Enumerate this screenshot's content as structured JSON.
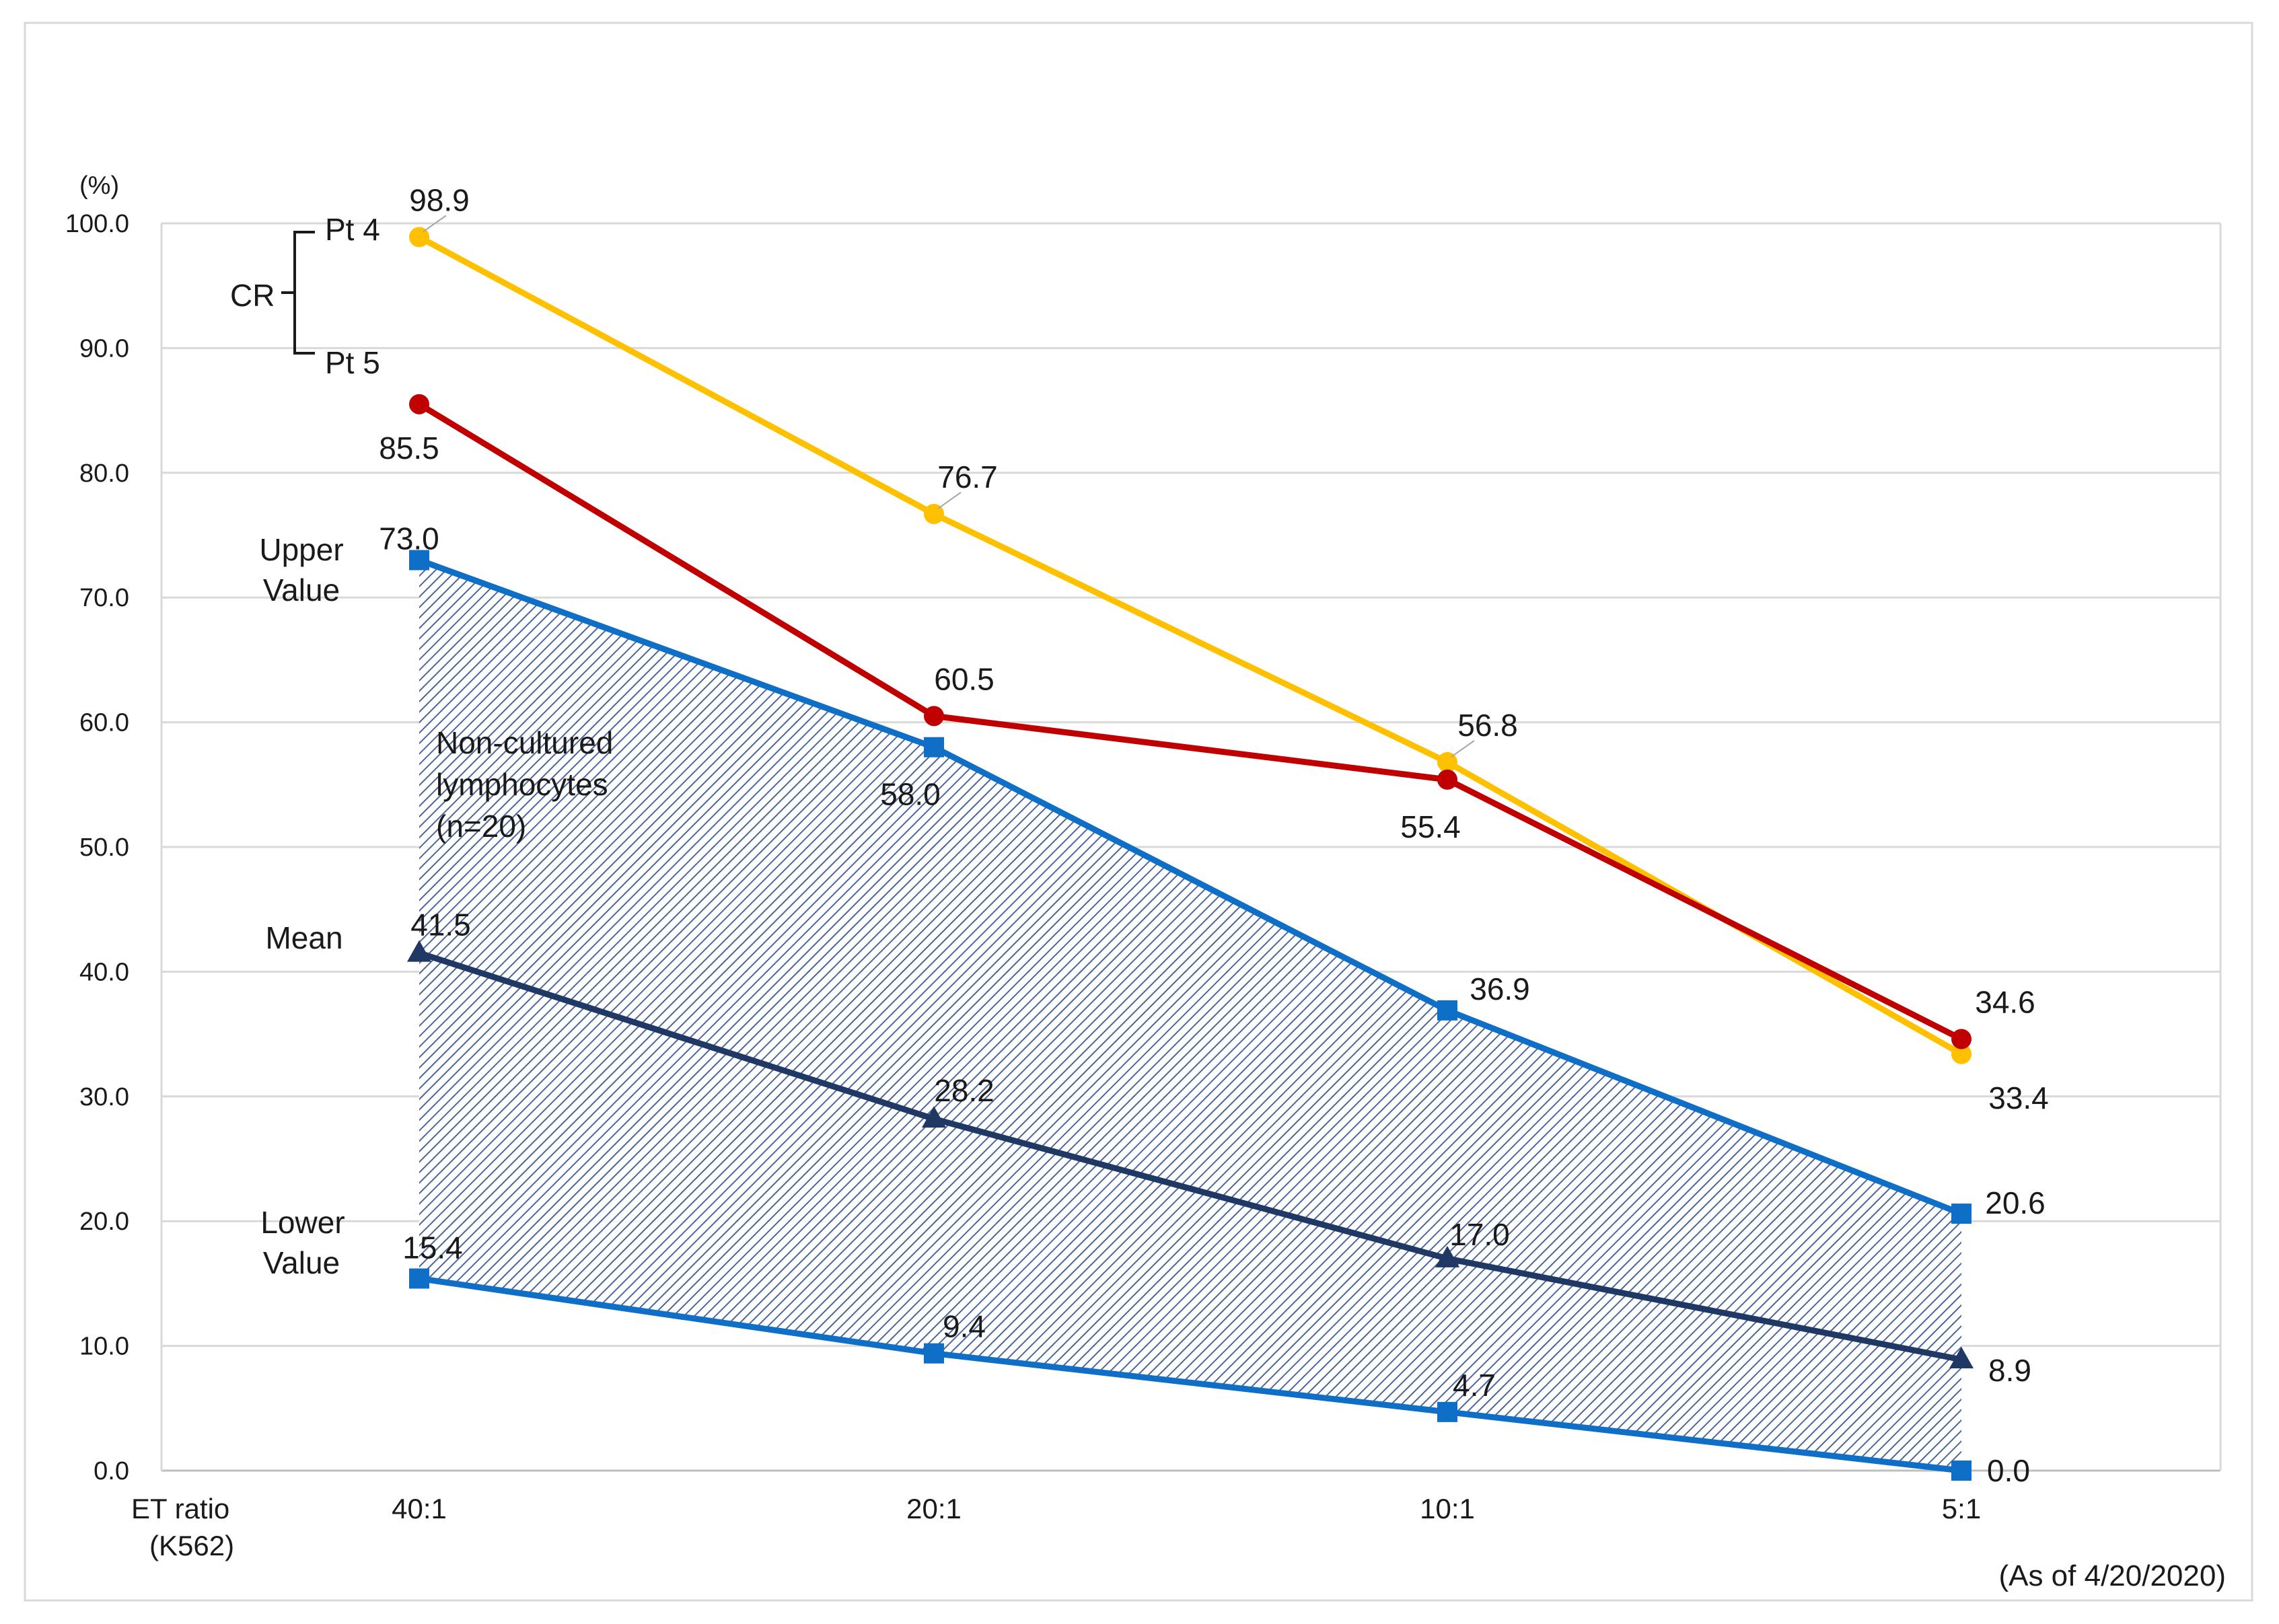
{
  "chart_data": {
    "type": "line",
    "title": "",
    "y_unit_label": "(%)",
    "x_axis_label_line1": "ET ratio",
    "x_axis_label_line2": "(K562)",
    "categories": [
      "40:1",
      "20:1",
      "10:1",
      "5:1"
    ],
    "ylim": [
      0,
      100
    ],
    "yticks": [
      "0.0",
      "10.0",
      "20.0",
      "30.0",
      "40.0",
      "50.0",
      "60.0",
      "70.0",
      "80.0",
      "90.0",
      "100.0"
    ],
    "grid": true,
    "series": [
      {
        "name": "Pt 4",
        "color": "#FFC000",
        "marker": "circle",
        "values": [
          98.9,
          76.7,
          56.8,
          33.4
        ],
        "labels": [
          "98.9",
          "76.7",
          "56.8",
          "33.4"
        ]
      },
      {
        "name": "Pt 5",
        "color": "#C00000",
        "marker": "circle",
        "values": [
          85.5,
          60.5,
          55.4,
          34.6
        ],
        "labels": [
          "85.5",
          "60.5",
          "55.4",
          "34.6"
        ]
      },
      {
        "name": "Upper Value",
        "color": "#0F6FC6",
        "marker": "square",
        "values": [
          73.0,
          58.0,
          36.9,
          20.6
        ],
        "labels": [
          "73.0",
          "58.0",
          "36.9",
          "20.6"
        ]
      },
      {
        "name": "Mean",
        "color": "#1F3864",
        "marker": "triangle",
        "values": [
          41.5,
          28.2,
          17.0,
          8.9
        ],
        "labels": [
          "41.5",
          "28.2",
          "17.0",
          "8.9"
        ]
      },
      {
        "name": "Lower Value",
        "color": "#0F6FC6",
        "marker": "square",
        "values": [
          15.4,
          9.4,
          4.7,
          0.0
        ],
        "labels": [
          "15.4",
          "9.4",
          "4.7",
          "0.0"
        ]
      }
    ],
    "band": {
      "upper_series": "Upper Value",
      "lower_series": "Lower Value",
      "fill": "hatched",
      "color": "#2E4B8F"
    },
    "annotations": {
      "cr": "CR",
      "pt4": "Pt 4",
      "pt5": "Pt 5",
      "upper_line1": "Upper",
      "upper_line2": "Value",
      "mean": "Mean",
      "lower_line1": "Lower",
      "lower_line2": "Value",
      "band_line1": "Non-cultured",
      "band_line2": "lymphocytes",
      "band_line3": "(n=20)",
      "date_note": "(As of 4/20/2020)"
    }
  }
}
